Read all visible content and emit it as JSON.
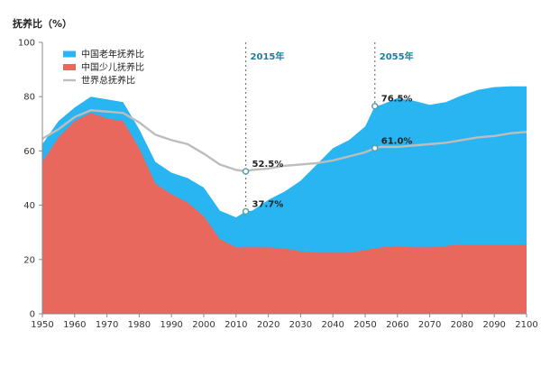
{
  "chart_data": {
    "type": "area",
    "ylabel": "抚养比（%）",
    "xlim": [
      1950,
      2100
    ],
    "ylim": [
      0,
      100
    ],
    "x_ticks": [
      "1950",
      "1960",
      "1970",
      "1980",
      "1990",
      "2000",
      "2010",
      "2020",
      "2030",
      "2040",
      "2050",
      "2060",
      "2070",
      "2080",
      "2090",
      "2100"
    ],
    "y_ticks": [
      "0",
      "20",
      "40",
      "60",
      "80",
      "100"
    ],
    "grid": false,
    "legend_position": "top-left",
    "colors": {
      "elderly": "#29b5f2",
      "child": "#e8685e",
      "world": "#bdbdbd",
      "marker": "#5a9eaa"
    },
    "series": [
      {
        "name": "中国老年抚养比",
        "type": "area",
        "x": [
          1950,
          1955,
          1960,
          1965,
          1970,
          1975,
          1980,
          1985,
          1990,
          1995,
          2000,
          2005,
          2010,
          2013,
          2015,
          2020,
          2025,
          2030,
          2035,
          2040,
          2045,
          2050,
          2053,
          2055,
          2060,
          2065,
          2070,
          2075,
          2080,
          2085,
          2090,
          2095,
          2100
        ],
        "values": [
          62.5,
          71,
          76,
          80,
          79,
          78,
          68,
          56,
          52,
          50,
          46.5,
          38,
          35.5,
          37.7,
          38,
          42,
          45,
          49,
          55,
          61,
          64,
          69,
          76.5,
          77,
          79.5,
          78.5,
          77,
          78,
          80.5,
          82.5,
          83.5,
          83.8,
          83.8
        ]
      },
      {
        "name": "中国少儿抚养比",
        "type": "area",
        "x": [
          1950,
          1955,
          1960,
          1965,
          1970,
          1975,
          1980,
          1985,
          1990,
          1995,
          2000,
          2005,
          2010,
          2015,
          2020,
          2025,
          2030,
          2035,
          2040,
          2045,
          2050,
          2055,
          2060,
          2065,
          2070,
          2075,
          2080,
          2085,
          2090,
          2095,
          2100
        ],
        "values": [
          56,
          65,
          71,
          74,
          72,
          71,
          61,
          48,
          44,
          41,
          36,
          27.5,
          24.5,
          24.5,
          24.5,
          24,
          23,
          22.5,
          22.5,
          22.5,
          23.5,
          24.5,
          25,
          24.5,
          24.5,
          25,
          25.5,
          25.5,
          25.5,
          25.5,
          25.5
        ]
      },
      {
        "name": "世界总抚养比",
        "type": "line",
        "x": [
          1950,
          1955,
          1960,
          1965,
          1970,
          1975,
          1980,
          1985,
          1990,
          1995,
          2000,
          2005,
          2010,
          2013,
          2015,
          2020,
          2025,
          2030,
          2035,
          2040,
          2045,
          2050,
          2053,
          2055,
          2060,
          2065,
          2070,
          2075,
          2080,
          2085,
          2090,
          2095,
          2100
        ],
        "values": [
          64.5,
          68,
          72.5,
          75,
          74.5,
          74,
          70.5,
          66,
          64,
          62.5,
          59,
          55,
          53,
          52.5,
          53,
          53.5,
          54.5,
          55,
          55.5,
          56.5,
          58,
          59.5,
          61,
          61.5,
          61.5,
          62,
          62.5,
          63,
          64,
          65,
          65.5,
          66.5,
          67
        ]
      }
    ],
    "markers": [
      {
        "year_label": "2015年",
        "x": 2013
      },
      {
        "year_label": "2055年",
        "x": 2053
      }
    ],
    "annotations": [
      {
        "text": "52.5%",
        "x": 2013,
        "y": 52.5
      },
      {
        "text": "37.7%",
        "x": 2013,
        "y": 37.7
      },
      {
        "text": "76.5%",
        "x": 2053,
        "y": 76.5
      },
      {
        "text": "61.0%",
        "x": 2053,
        "y": 61.0
      }
    ]
  }
}
